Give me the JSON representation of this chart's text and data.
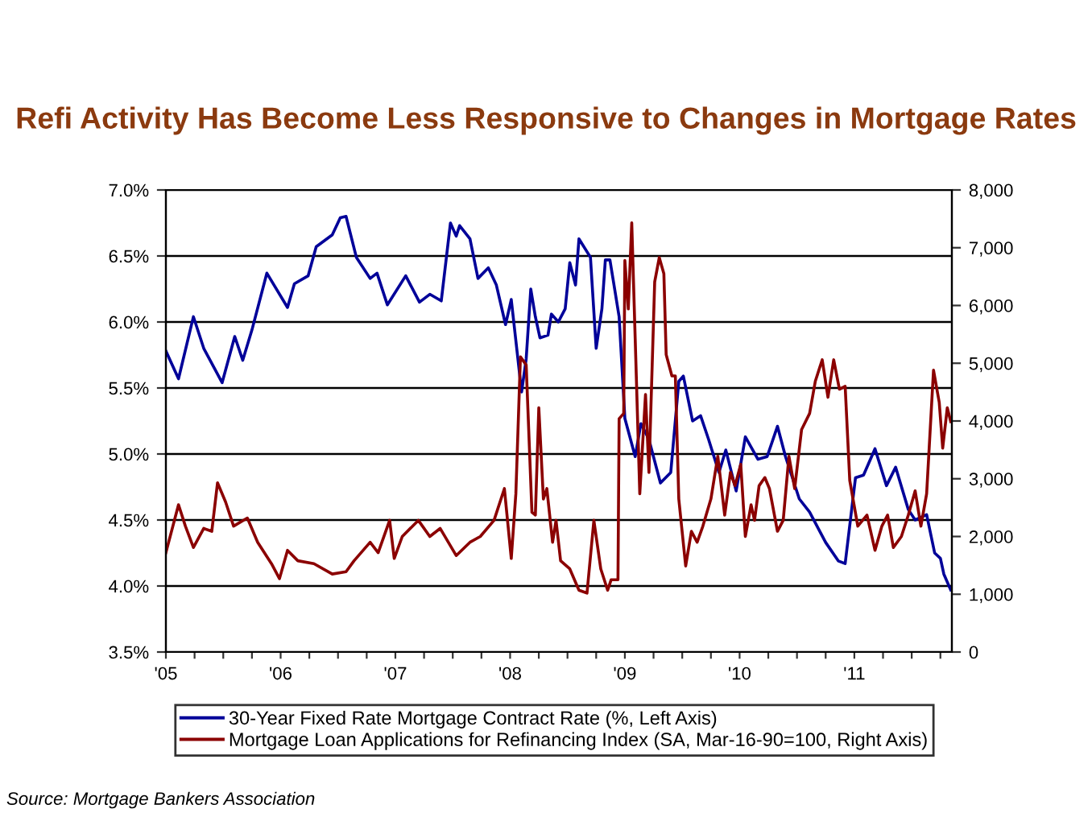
{
  "chart_data": {
    "type": "line",
    "title": "Refi Activity Has Become Less Responsive to Changes in Mortgage Rates",
    "xlim": [
      2005,
      2011.85
    ],
    "xticks": [
      {
        "value": 2005,
        "label": "'05"
      },
      {
        "value": 2005.25,
        "label": null
      },
      {
        "value": 2005.5,
        "label": null
      },
      {
        "value": 2005.75,
        "label": null
      },
      {
        "value": 2006,
        "label": "'06"
      },
      {
        "value": 2006.25,
        "label": null
      },
      {
        "value": 2006.5,
        "label": null
      },
      {
        "value": 2006.75,
        "label": null
      },
      {
        "value": 2007,
        "label": "'07"
      },
      {
        "value": 2007.25,
        "label": null
      },
      {
        "value": 2007.5,
        "label": null
      },
      {
        "value": 2007.75,
        "label": null
      },
      {
        "value": 2008,
        "label": "'08"
      },
      {
        "value": 2008.25,
        "label": null
      },
      {
        "value": 2008.5,
        "label": null
      },
      {
        "value": 2008.75,
        "label": null
      },
      {
        "value": 2009,
        "label": "'09"
      },
      {
        "value": 2009.25,
        "label": null
      },
      {
        "value": 2009.5,
        "label": null
      },
      {
        "value": 2009.75,
        "label": null
      },
      {
        "value": 2010,
        "label": "'10"
      },
      {
        "value": 2010.25,
        "label": null
      },
      {
        "value": 2010.5,
        "label": null
      },
      {
        "value": 2010.75,
        "label": null
      },
      {
        "value": 2011,
        "label": "'11"
      },
      {
        "value": 2011.25,
        "label": null
      },
      {
        "value": 2011.5,
        "label": null
      },
      {
        "value": 2011.75,
        "label": null
      }
    ],
    "ylim": [
      3.5,
      7.0
    ],
    "yticks": [
      {
        "value": 3.5,
        "label": "3.5%"
      },
      {
        "value": 4.0,
        "label": "4.0%"
      },
      {
        "value": 4.5,
        "label": "4.5%"
      },
      {
        "value": 5.0,
        "label": "5.0%"
      },
      {
        "value": 5.5,
        "label": "5.5%"
      },
      {
        "value": 6.0,
        "label": "6.0%"
      },
      {
        "value": 6.5,
        "label": "6.5%"
      },
      {
        "value": 7.0,
        "label": "7.0%"
      }
    ],
    "y2lim": [
      0,
      8000
    ],
    "y2ticks": [
      0,
      {
        "value": 1000,
        "label": "1,000"
      },
      {
        "value": 2000,
        "label": "2,000"
      },
      {
        "value": 3000,
        "label": "3,000"
      },
      {
        "value": 4000,
        "label": "4,000"
      },
      {
        "value": 5000,
        "label": "5,000"
      },
      {
        "value": 6000,
        "label": "6,000"
      },
      {
        "value": 7000,
        "label": "7,000"
      },
      {
        "value": 8000,
        "label": "8,000"
      }
    ],
    "grid": "y",
    "legend": "bottom",
    "series": [
      {
        "name": "30-Year Fixed Rate Mortgage Contract Rate (%, Left Axis)",
        "color": "#000099",
        "x": [
          2005.0,
          2005.11,
          2005.24,
          2005.33,
          2005.49,
          2005.6,
          2005.67,
          2005.75,
          2005.88,
          2006.06,
          2006.12,
          2006.24,
          2006.31,
          2006.45,
          2006.52,
          2006.57,
          2006.66,
          2006.78,
          2006.84,
          2006.93,
          2007.09,
          2007.21,
          2007.3,
          2007.4,
          2007.48,
          2007.53,
          2007.56,
          2007.65,
          2007.72,
          2007.81,
          2007.88,
          2007.96,
          2008.01,
          2008.1,
          2008.14,
          2008.18,
          2008.22,
          2008.26,
          2008.33,
          2008.36,
          2008.42,
          2008.48,
          2008.52,
          2008.57,
          2008.6,
          2008.7,
          2008.75,
          2008.8,
          2008.83,
          2008.87,
          2008.95,
          2009.0,
          2009.09,
          2009.14,
          2009.21,
          2009.31,
          2009.4,
          2009.47,
          2009.51,
          2009.59,
          2009.66,
          2009.73,
          2009.82,
          2009.88,
          2009.97,
          2010.05,
          2010.16,
          2010.24,
          2010.33,
          2010.4,
          2010.52,
          2010.61,
          2010.75,
          2010.86,
          2010.92,
          2011.01,
          2011.08,
          2011.18,
          2011.28,
          2011.36,
          2011.47,
          2011.53,
          2011.63,
          2011.7,
          2011.75,
          2011.78,
          2011.84
        ],
        "values": [
          5.78,
          5.57,
          6.04,
          5.8,
          5.54,
          5.89,
          5.71,
          5.94,
          6.37,
          6.11,
          6.29,
          6.35,
          6.57,
          6.66,
          6.79,
          6.8,
          6.49,
          6.33,
          6.37,
          6.13,
          6.35,
          6.15,
          6.21,
          6.16,
          6.75,
          6.65,
          6.73,
          6.63,
          6.33,
          6.41,
          6.28,
          5.98,
          6.17,
          5.47,
          5.72,
          6.25,
          6.04,
          5.88,
          5.9,
          6.06,
          6.0,
          6.1,
          6.45,
          6.28,
          6.63,
          6.49,
          5.8,
          6.1,
          6.47,
          6.47,
          6.04,
          5.27,
          4.98,
          5.23,
          5.11,
          4.78,
          4.86,
          5.55,
          5.59,
          5.25,
          5.29,
          5.11,
          4.86,
          5.03,
          4.72,
          5.13,
          4.96,
          4.98,
          5.21,
          4.98,
          4.66,
          4.56,
          4.33,
          4.19,
          4.17,
          4.82,
          4.84,
          5.04,
          4.76,
          4.9,
          4.58,
          4.5,
          4.54,
          4.25,
          4.21,
          4.09,
          3.97
        ]
      },
      {
        "name": "Mortgage Loan Applications for Refinancing Index (SA, Mar-16-90=100, Right Axis)",
        "color": "#8b0000",
        "axis": "y2",
        "x": [
          2005.0,
          2005.11,
          2005.17,
          2005.24,
          2005.33,
          2005.4,
          2005.45,
          2005.52,
          2005.59,
          2005.71,
          2005.8,
          2005.92,
          2005.99,
          2006.06,
          2006.15,
          2006.29,
          2006.45,
          2006.57,
          2006.64,
          2006.78,
          2006.85,
          2006.95,
          2006.99,
          2007.06,
          2007.2,
          2007.3,
          2007.39,
          2007.53,
          2007.65,
          2007.74,
          2007.86,
          2007.95,
          2008.01,
          2008.05,
          2008.09,
          2008.14,
          2008.19,
          2008.22,
          2008.25,
          2008.29,
          2008.32,
          2008.37,
          2008.4,
          2008.44,
          2008.52,
          2008.6,
          2008.67,
          2008.73,
          2008.79,
          2008.85,
          2008.88,
          2008.94,
          2008.95,
          2008.99,
          2009.0,
          2009.03,
          2009.06,
          2009.09,
          2009.13,
          2009.18,
          2009.21,
          2009.26,
          2009.3,
          2009.34,
          2009.36,
          2009.41,
          2009.44,
          2009.47,
          2009.53,
          2009.58,
          2009.63,
          2009.68,
          2009.75,
          2009.81,
          2009.87,
          2009.92,
          2009.96,
          2010.01,
          2010.05,
          2010.1,
          2010.13,
          2010.17,
          2010.22,
          2010.26,
          2010.33,
          2010.38,
          2010.43,
          2010.48,
          2010.54,
          2010.61,
          2010.66,
          2010.72,
          2010.77,
          2010.82,
          2010.87,
          2010.92,
          2010.96,
          2011.03,
          2011.11,
          2011.18,
          2011.24,
          2011.29,
          2011.34,
          2011.41,
          2011.47,
          2011.53,
          2011.58,
          2011.63,
          2011.69,
          2011.74,
          2011.77,
          2011.81,
          2011.84
        ],
        "values": [
          1720,
          2550,
          2180,
          1810,
          2140,
          2090,
          2930,
          2600,
          2180,
          2320,
          1900,
          1530,
          1270,
          1760,
          1580,
          1530,
          1350,
          1390,
          1580,
          1900,
          1720,
          2280,
          1620,
          2000,
          2280,
          2000,
          2140,
          1670,
          1900,
          2000,
          2280,
          2830,
          1620,
          2740,
          5110,
          4970,
          2420,
          2370,
          4230,
          2650,
          2830,
          1900,
          2280,
          1580,
          1440,
          1070,
          1020,
          2280,
          1440,
          1070,
          1250,
          1250,
          4040,
          4130,
          6780,
          5940,
          7430,
          5430,
          2740,
          4460,
          3110,
          6410,
          6830,
          6550,
          5150,
          4780,
          4780,
          2650,
          1490,
          2090,
          1900,
          2180,
          2650,
          3390,
          2370,
          3110,
          2880,
          3250,
          2000,
          2550,
          2280,
          2880,
          3020,
          2830,
          2090,
          2280,
          3390,
          2830,
          3850,
          4130,
          4690,
          5060,
          4410,
          5060,
          4550,
          4600,
          2970,
          2180,
          2370,
          1760,
          2180,
          2370,
          1810,
          2000,
          2370,
          2790,
          2180,
          2740,
          4880,
          4320,
          3530,
          4230,
          3990
        ]
      }
    ],
    "annotations": [
      "Source: Mortgage Bankers Association"
    ]
  }
}
